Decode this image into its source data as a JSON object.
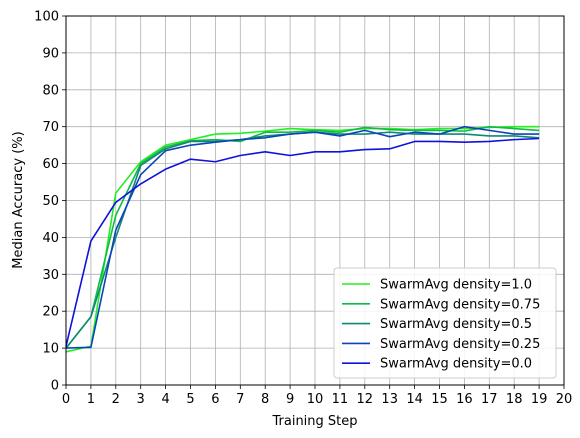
{
  "chart_data": {
    "type": "line",
    "title": "",
    "xlabel": "Training Step",
    "ylabel": "Median Accuracy (%)",
    "xlim": [
      0,
      20
    ],
    "ylim": [
      0,
      100
    ],
    "xticks": [
      "0",
      "1",
      "2",
      "3",
      "4",
      "5",
      "6",
      "7",
      "8",
      "9",
      "10",
      "11",
      "12",
      "13",
      "14",
      "15",
      "16",
      "17",
      "18",
      "19",
      "20"
    ],
    "yticks": [
      "0",
      "10",
      "20",
      "30",
      "40",
      "50",
      "60",
      "70",
      "80",
      "90",
      "100"
    ],
    "grid": true,
    "legend_position": "lower-right",
    "x": [
      0,
      1,
      2,
      3,
      4,
      5,
      6,
      7,
      8,
      9,
      10,
      11,
      12,
      13,
      14,
      15,
      16,
      17,
      18,
      19
    ],
    "series": [
      {
        "name": "SwarmAvg density=1.0",
        "color": "#22ee22",
        "values": [
          9.0,
          10.5,
          52.0,
          60.5,
          65.0,
          66.5,
          68.0,
          68.2,
          68.8,
          69.5,
          69.2,
          69.0,
          69.5,
          69.5,
          69.2,
          69.5,
          69.5,
          69.8,
          70.0,
          70.0
        ]
      },
      {
        "name": "SwarmAvg density=0.75",
        "color": "#11bb44",
        "values": [
          10.0,
          18.5,
          46.0,
          60.0,
          64.5,
          66.2,
          66.5,
          66.0,
          68.5,
          68.5,
          69.0,
          68.5,
          69.8,
          69.2,
          69.0,
          69.0,
          68.8,
          70.0,
          69.5,
          69.0
        ]
      },
      {
        "name": "SwarmAvg density=0.5",
        "color": "#118877",
        "values": [
          10.0,
          18.5,
          40.0,
          59.5,
          64.0,
          66.0,
          66.0,
          66.5,
          67.5,
          68.0,
          68.5,
          68.0,
          68.0,
          68.5,
          68.0,
          68.0,
          68.0,
          67.5,
          67.5,
          67.0
        ]
      },
      {
        "name": "SwarmAvg density=0.25",
        "color": "#0a44bb",
        "values": [
          10.0,
          10.2,
          42.0,
          57.0,
          63.5,
          65.0,
          65.8,
          66.5,
          67.0,
          68.0,
          68.5,
          67.5,
          69.0,
          67.3,
          68.5,
          68.0,
          70.0,
          69.0,
          68.0,
          68.0
        ]
      },
      {
        "name": "SwarmAvg density=0.0",
        "color": "#1111dd",
        "values": [
          10.5,
          39.0,
          49.5,
          54.5,
          58.5,
          61.2,
          60.5,
          62.2,
          63.2,
          62.2,
          63.2,
          63.2,
          63.8,
          64.0,
          66.0,
          66.0,
          65.8,
          66.0,
          66.5,
          66.8
        ]
      }
    ]
  }
}
